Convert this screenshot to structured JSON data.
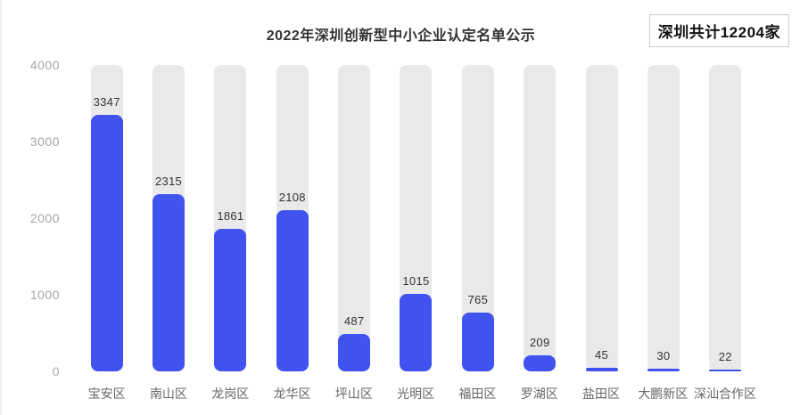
{
  "header": {
    "title": "2022年深圳创新型中小企业认定名单公示",
    "badge": "深圳共计12204家"
  },
  "chart_data": {
    "type": "bar",
    "title": "2022年深圳创新型中小企业认定名单公示",
    "annotation": "深圳共计12204家",
    "categories": [
      "宝安区",
      "南山区",
      "龙岗区",
      "龙华区",
      "坪山区",
      "光明区",
      "福田区",
      "罗湖区",
      "盐田区",
      "大鹏新区",
      "深汕合作区"
    ],
    "values": [
      3347,
      2315,
      1861,
      2108,
      487,
      1015,
      765,
      209,
      45,
      30,
      22
    ],
    "ylabel": "",
    "xlabel": "",
    "ylim": [
      0,
      4000
    ],
    "yticks": [
      0,
      1000,
      2000,
      3000,
      4000
    ],
    "grid": false,
    "legend": false,
    "value_labels": true,
    "colors": {
      "bar": "#4153ee",
      "track": "#e9e9e9",
      "value_label": "#333333",
      "y_tick": "#a6a6a6",
      "x_tick": "#666666",
      "title": "#333333"
    }
  }
}
